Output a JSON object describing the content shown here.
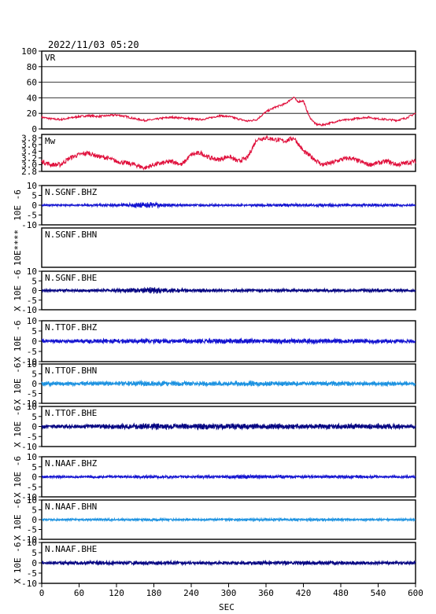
{
  "header": {
    "timestamp": "2022/11/03 05:20"
  },
  "xaxis": {
    "label": "SEC",
    "ticks": [
      0,
      60,
      120,
      180,
      240,
      300,
      360,
      420,
      480,
      540,
      600
    ]
  },
  "colors": {
    "vr": "#e0103c",
    "mw": "#e0103c",
    "navy": "#000080",
    "blue": "#1010d0",
    "light_blue": "#1890e0"
  },
  "chart_data": [
    {
      "type": "line",
      "id": "vr",
      "title": "VR",
      "ylim": [
        0,
        100
      ],
      "yticks": [
        0,
        20,
        40,
        60,
        80,
        100
      ],
      "grid": true,
      "color": "#e0103c",
      "x": [
        0,
        15,
        30,
        45,
        60,
        75,
        90,
        105,
        120,
        135,
        150,
        165,
        180,
        195,
        210,
        225,
        240,
        255,
        270,
        285,
        300,
        315,
        330,
        345,
        360,
        375,
        390,
        400,
        405,
        410,
        420,
        425,
        430,
        440,
        450,
        465,
        480,
        495,
        510,
        525,
        540,
        555,
        570,
        585,
        595,
        600
      ],
      "y": [
        15,
        13,
        12,
        14,
        16,
        17,
        16,
        17,
        18,
        16,
        13,
        11,
        12,
        14,
        15,
        14,
        13,
        12,
        14,
        17,
        16,
        13,
        10,
        12,
        22,
        28,
        32,
        38,
        41,
        35,
        36,
        25,
        15,
        6,
        5,
        8,
        11,
        12,
        14,
        15,
        13,
        12,
        11,
        14,
        18,
        20
      ]
    },
    {
      "type": "line",
      "id": "mw",
      "title": "Mw",
      "ylim": [
        2.8,
        3.9
      ],
      "yticks": [
        2.8,
        3.0,
        3.2,
        3.4,
        3.6,
        3.8
      ],
      "ytick_labels": [
        "2.8",
        "3.0",
        "3.2",
        "3.4",
        "3.6",
        "3.8"
      ],
      "color": "#e0103c",
      "x": [
        0,
        15,
        30,
        45,
        60,
        75,
        90,
        105,
        120,
        135,
        150,
        165,
        180,
        195,
        210,
        225,
        240,
        255,
        270,
        285,
        300,
        315,
        330,
        345,
        360,
        375,
        390,
        405,
        420,
        435,
        450,
        465,
        480,
        495,
        510,
        525,
        540,
        555,
        570,
        585,
        600
      ],
      "y": [
        3.1,
        3.0,
        3.0,
        3.2,
        3.3,
        3.35,
        3.25,
        3.2,
        3.1,
        3.05,
        3.0,
        2.9,
        3.0,
        3.05,
        3.1,
        3.0,
        3.3,
        3.35,
        3.2,
        3.15,
        3.25,
        3.1,
        3.2,
        3.75,
        3.8,
        3.75,
        3.7,
        3.8,
        3.4,
        3.2,
        3.0,
        3.05,
        3.15,
        3.2,
        3.1,
        3.0,
        3.05,
        3.1,
        3.0,
        3.05,
        3.1
      ]
    },
    {
      "type": "line",
      "id": "sgnf-bhz",
      "title": "N.SGNF.BHZ",
      "ylabel": "10E -6",
      "ylim": [
        -10,
        10
      ],
      "yticks": [
        -10,
        -5,
        0,
        5,
        10
      ],
      "color": "#1010d0",
      "x": [
        0,
        60,
        120,
        150,
        165,
        180,
        195,
        210,
        240,
        300,
        360,
        420,
        480,
        540,
        600
      ],
      "y": [
        0.4,
        0.5,
        0.7,
        1.1,
        1.5,
        1.2,
        0.8,
        0.6,
        0.6,
        0.5,
        0.6,
        0.7,
        0.7,
        0.6,
        0.5
      ]
    },
    {
      "type": "line",
      "id": "sgnf-bhn",
      "title": "N.SGNF.BHN",
      "ylabel": "10E****",
      "x": [],
      "y": []
    },
    {
      "type": "line",
      "id": "sgnf-bhe",
      "title": "N.SGNF.BHE",
      "ylabel": "X 10E -6",
      "ylim": [
        -10,
        10
      ],
      "yticks": [
        -10,
        -5,
        0,
        5,
        10
      ],
      "color": "#000080",
      "x": [
        0,
        60,
        120,
        165,
        180,
        195,
        240,
        300,
        360,
        420,
        480,
        540,
        600
      ],
      "y": [
        0.6,
        0.7,
        0.8,
        1.3,
        1.6,
        1.1,
        0.8,
        0.7,
        0.8,
        0.8,
        0.7,
        0.8,
        0.6
      ]
    },
    {
      "type": "line",
      "id": "ttof-bhz",
      "title": "N.TTOF.BHZ",
      "ylabel": "X 10E -6",
      "ylim": [
        -10,
        10
      ],
      "yticks": [
        -10,
        -5,
        0,
        5,
        10
      ],
      "color": "#1010d0",
      "x": [
        0,
        60,
        120,
        180,
        240,
        300,
        360,
        420,
        480,
        540,
        600
      ],
      "y": [
        0.8,
        0.9,
        1.0,
        1.1,
        1.0,
        1.1,
        1.0,
        1.0,
        1.0,
        0.9,
        0.8
      ]
    },
    {
      "type": "line",
      "id": "ttof-bhn",
      "title": "N.TTOF.BHN",
      "ylabel": "X 10E -6",
      "ylim": [
        -10,
        10
      ],
      "yticks": [
        -10,
        -5,
        0,
        5,
        10
      ],
      "color": "#1890e0",
      "x": [
        0,
        60,
        120,
        180,
        240,
        300,
        360,
        420,
        480,
        540,
        600
      ],
      "y": [
        0.9,
        1.0,
        1.0,
        1.3,
        1.1,
        1.1,
        1.2,
        1.0,
        1.0,
        0.9,
        0.9
      ]
    },
    {
      "type": "line",
      "id": "ttof-bhe",
      "title": "N.TTOF.BHE",
      "ylabel": "X 10E -6",
      "ylim": [
        -10,
        10
      ],
      "yticks": [
        -10,
        -5,
        0,
        5,
        10
      ],
      "color": "#000080",
      "x": [
        0,
        60,
        120,
        180,
        240,
        300,
        360,
        420,
        480,
        540,
        600
      ],
      "y": [
        0.8,
        0.9,
        1.1,
        1.4,
        1.2,
        1.3,
        1.3,
        1.1,
        1.2,
        1.2,
        1.0
      ]
    },
    {
      "type": "line",
      "id": "naaf-bhz",
      "title": "N.NAAF.BHZ",
      "ylabel": "X 10E -6",
      "ylim": [
        -10,
        10
      ],
      "yticks": [
        -10,
        -5,
        0,
        5,
        10
      ],
      "color": "#1010d0",
      "x": [
        0,
        60,
        120,
        180,
        240,
        300,
        330,
        360,
        420,
        480,
        540,
        600
      ],
      "y": [
        0.5,
        0.6,
        0.6,
        0.7,
        0.6,
        0.7,
        1.0,
        0.7,
        0.6,
        0.7,
        0.6,
        0.5
      ]
    },
    {
      "type": "line",
      "id": "naaf-bhn",
      "title": "N.NAAF.BHN",
      "ylabel": "X 10E -6",
      "ylim": [
        -10,
        10
      ],
      "yticks": [
        -10,
        -5,
        0,
        5,
        10
      ],
      "color": "#1890e0",
      "x": [
        0,
        60,
        120,
        180,
        240,
        300,
        360,
        420,
        480,
        540,
        600
      ],
      "y": [
        0.5,
        0.5,
        0.6,
        0.6,
        0.5,
        0.6,
        0.6,
        0.6,
        0.6,
        0.5,
        0.5
      ]
    },
    {
      "type": "line",
      "id": "naaf-bhe",
      "title": "N.NAAF.BHE",
      "ylabel": "X 10E -6",
      "ylim": [
        -10,
        10
      ],
      "yticks": [
        -10,
        -5,
        0,
        5,
        10
      ],
      "color": "#000080",
      "x": [
        0,
        60,
        120,
        180,
        240,
        300,
        360,
        420,
        480,
        540,
        600
      ],
      "y": [
        0.7,
        0.8,
        0.9,
        0.9,
        0.8,
        0.8,
        0.8,
        0.9,
        0.8,
        0.8,
        0.7
      ]
    }
  ]
}
